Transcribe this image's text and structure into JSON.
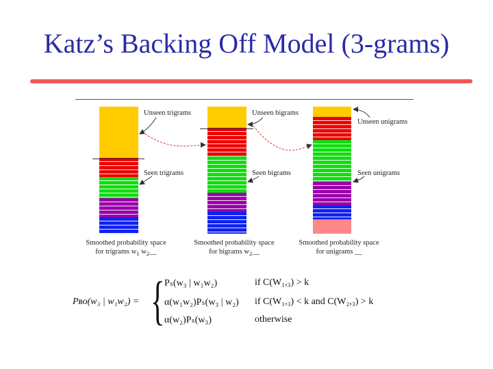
{
  "title": "Katz’s Backing Off Model (3-grams)",
  "colors": {
    "title": "#2a2aa8",
    "accent_rule": "#f05656",
    "yellow": "#ffcc00",
    "red": "#ee0000",
    "green": "#11dd11",
    "purple": "#9900aa",
    "blue": "#1122ee",
    "pink": "#ff8888",
    "arrow": "#dd3333"
  },
  "diagram": {
    "columns": [
      {
        "id": "trigrams",
        "segments": [
          {
            "color": "yellow",
            "weight": 27,
            "striped": false
          },
          {
            "color": "red",
            "weight": 10,
            "striped": true
          },
          {
            "color": "green",
            "weight": 11,
            "striped": true
          },
          {
            "color": "purple",
            "weight": 10,
            "striped": true
          },
          {
            "color": "blue",
            "weight": 9,
            "striped": true
          }
        ],
        "unseen_label": "Unseen trigrams",
        "seen_label": "Seen trigrams",
        "caption_line1": "Smoothed probability space",
        "caption_line2": "for trigrams w",
        "caption_sub1": "1",
        "caption_mid": " w",
        "caption_sub2": "2",
        "caption_tail": "__"
      },
      {
        "id": "bigrams",
        "segments": [
          {
            "color": "yellow",
            "weight": 11,
            "striped": false
          },
          {
            "color": "red",
            "weight": 15,
            "striped": true
          },
          {
            "color": "green",
            "weight": 19,
            "striped": true
          },
          {
            "color": "purple",
            "weight": 10,
            "striped": true
          },
          {
            "color": "blue",
            "weight": 12,
            "striped": true
          }
        ],
        "unseen_label": "Unseen bigrams",
        "seen_label": "Seen bigrams",
        "caption_line1": "Smoothed probability space",
        "caption_line2": "for bigrams w",
        "caption_sub1": "2",
        "caption_mid": "",
        "caption_sub2": "",
        "caption_tail": "__"
      },
      {
        "id": "unigrams",
        "segments": [
          {
            "color": "yellow",
            "weight": 5,
            "striped": false
          },
          {
            "color": "red",
            "weight": 11,
            "striped": true
          },
          {
            "color": "green",
            "weight": 20,
            "striped": true
          },
          {
            "color": "purple",
            "weight": 11,
            "striped": true
          },
          {
            "color": "blue",
            "weight": 7,
            "striped": true
          },
          {
            "color": "pink",
            "weight": 7,
            "striped": false
          }
        ],
        "unseen_label": "Unseen unigrams",
        "seen_label": "Seen unigrams",
        "caption_line1": "Smoothed probability space",
        "caption_line2": "for unigrams",
        "caption_sub1": "",
        "caption_mid": "",
        "caption_sub2": "",
        "caption_tail": " __"
      }
    ]
  },
  "formula": {
    "lhs": "Pʙᴏ(w₃ | w₁w₂) =",
    "cases": [
      {
        "expr": "Pₛ(w₃ | w₁w₂)",
        "cond": "if C(W₁,₃) > k"
      },
      {
        "expr": "α(w₁w₂)Pₛ(w₃ | w₂)",
        "cond": "if C(W₁,₃) < k and C(W₂,₃) > k"
      },
      {
        "expr": "α(w₂)Pₛ(w₃)",
        "cond": "otherwise"
      }
    ]
  }
}
